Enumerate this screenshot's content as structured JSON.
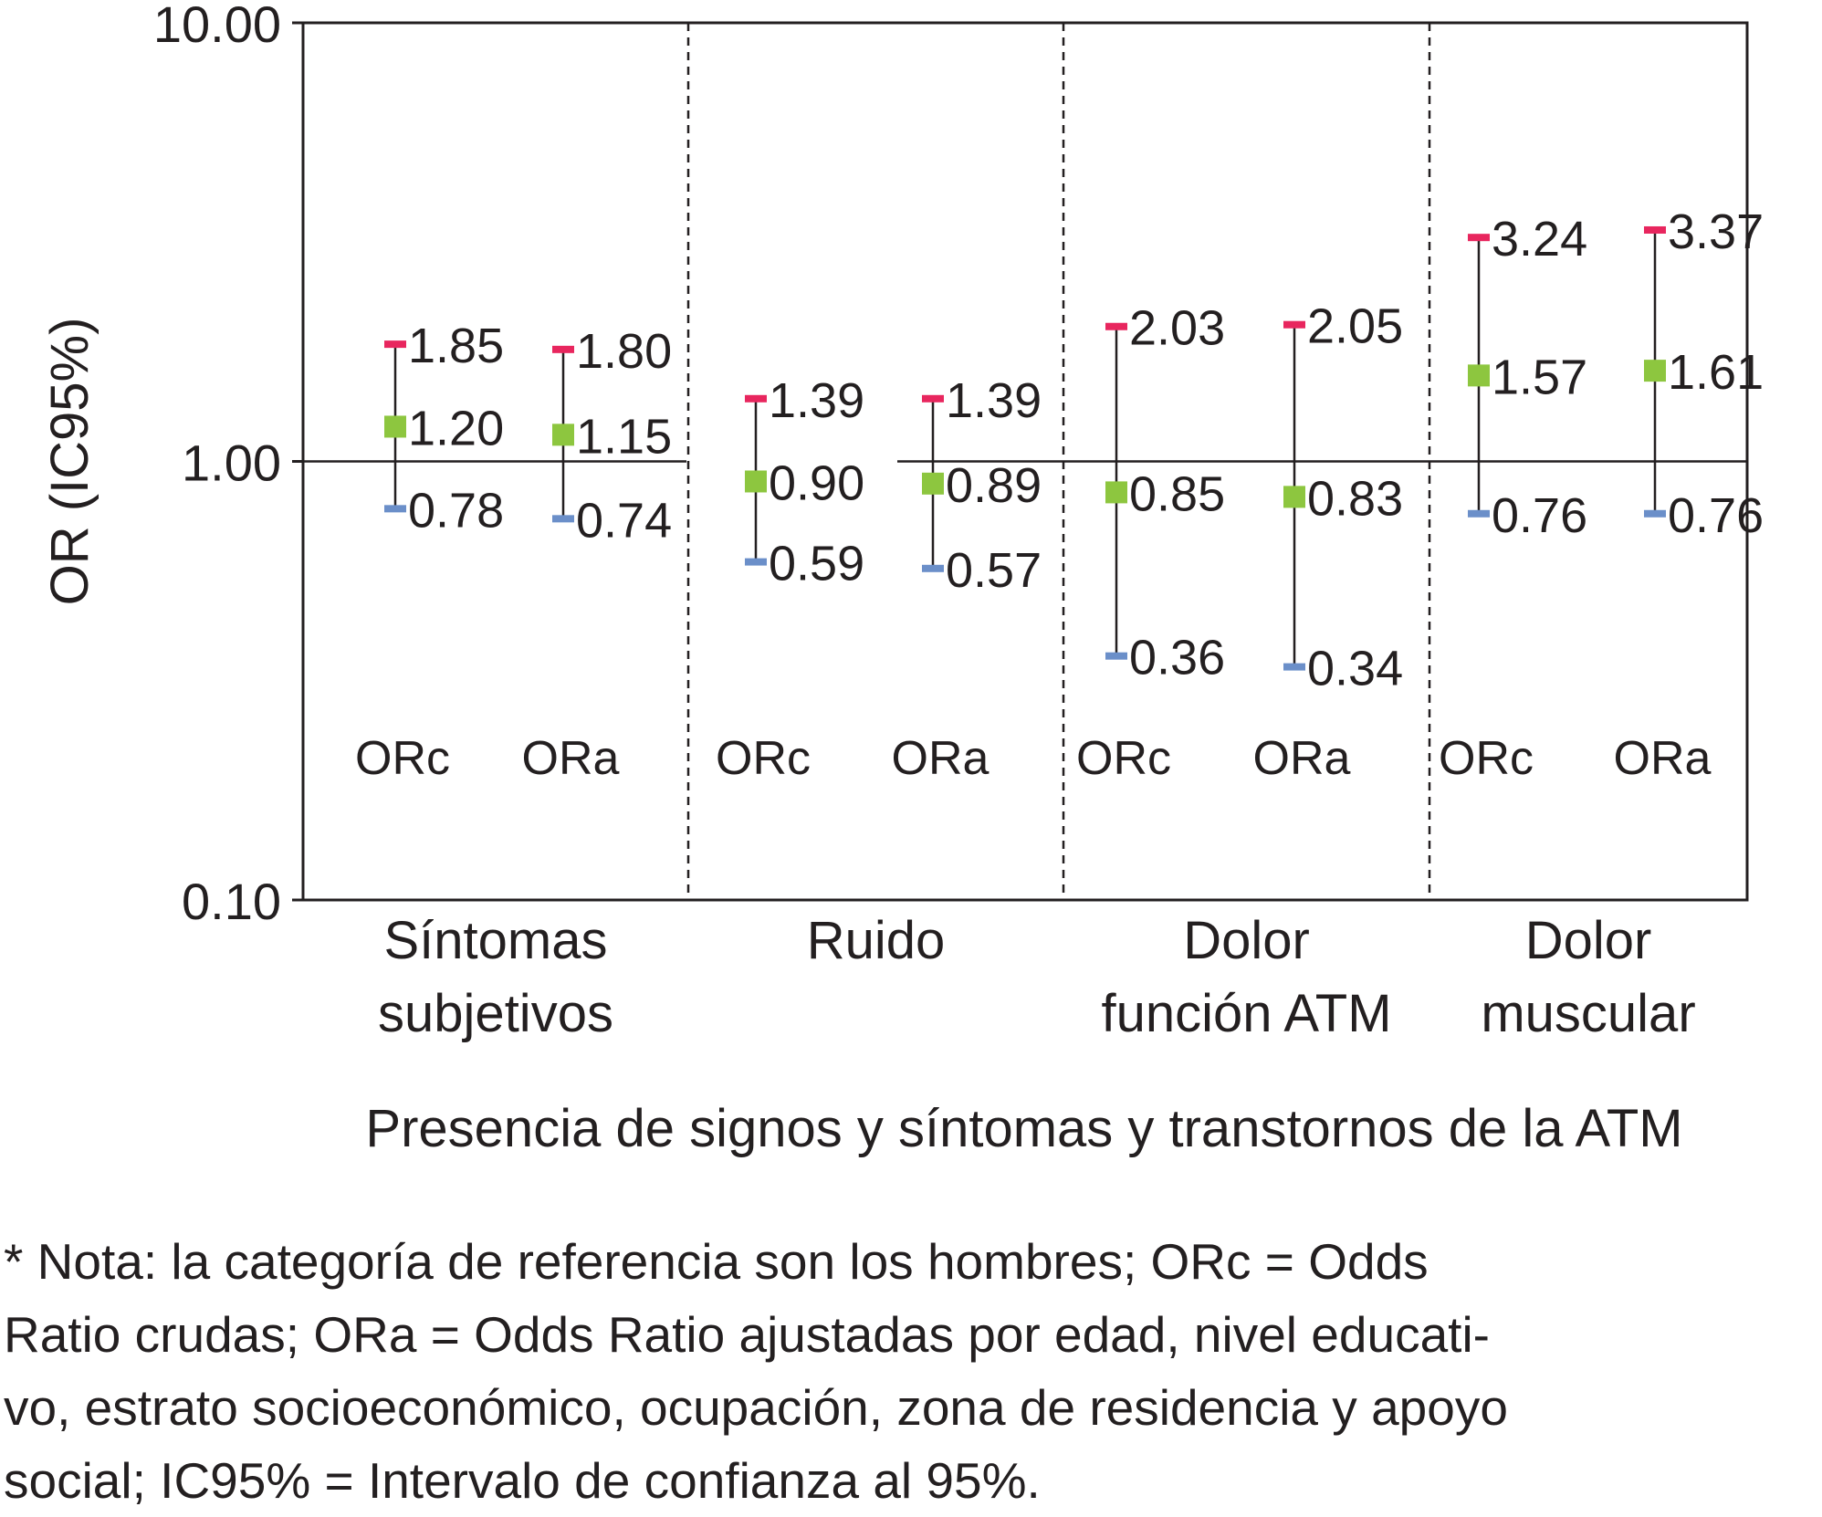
{
  "chart_data": {
    "type": "scatter",
    "ylabel": "OR (IC95%)",
    "xlabel": "Presencia de signos y síntomas y transtornos de la ATM",
    "yscale": "log",
    "ylim": [
      0.1,
      10
    ],
    "y_ticks": [
      "10.00",
      "1.00",
      "0.10"
    ],
    "reference_line": 1.0,
    "grid": false,
    "groups": [
      {
        "label_lines": [
          "Síntomas",
          "subjetivos"
        ],
        "estimates": [
          {
            "label": "ORc",
            "or": 1.2,
            "lower": 0.78,
            "upper": 1.85,
            "or_text": "1.20",
            "lower_text": "0.78",
            "upper_text": "1.85"
          },
          {
            "label": "ORa",
            "or": 1.15,
            "lower": 0.74,
            "upper": 1.8,
            "or_text": "1.15",
            "lower_text": "0.74",
            "upper_text": "1.80"
          }
        ]
      },
      {
        "label_lines": [
          "Ruido"
        ],
        "estimates": [
          {
            "label": "ORc",
            "or": 0.9,
            "lower": 0.59,
            "upper": 1.39,
            "or_text": "0.90",
            "lower_text": "0.59",
            "upper_text": "1.39"
          },
          {
            "label": "ORa",
            "or": 0.89,
            "lower": 0.57,
            "upper": 1.39,
            "or_text": "0.89",
            "lower_text": "0.57",
            "upper_text": "1.39"
          }
        ]
      },
      {
        "label_lines": [
          "Dolor",
          "función ATM"
        ],
        "estimates": [
          {
            "label": "ORc",
            "or": 0.85,
            "lower": 0.36,
            "upper": 2.03,
            "or_text": "0.85",
            "lower_text": "0.36",
            "upper_text": "2.03"
          },
          {
            "label": "ORa",
            "or": 0.83,
            "lower": 0.34,
            "upper": 2.05,
            "or_text": "0.83",
            "lower_text": "0.34",
            "upper_text": "2.05"
          }
        ]
      },
      {
        "label_lines": [
          "Dolor",
          "muscular"
        ],
        "estimates": [
          {
            "label": "ORc",
            "or": 1.57,
            "lower": 0.76,
            "upper": 3.24,
            "or_text": "1.57",
            "lower_text": "0.76",
            "upper_text": "3.24"
          },
          {
            "label": "ORa",
            "or": 1.61,
            "lower": 0.76,
            "upper": 3.37,
            "or_text": "1.61",
            "lower_text": "0.76",
            "upper_text": "3.37"
          }
        ]
      }
    ],
    "colors": {
      "point": "#8dc63f",
      "upper": "#e8265e",
      "lower": "#6b8fc9",
      "line": "#231f20"
    }
  },
  "note": {
    "lines": [
      "* Nota: la categoría de referencia son los hombres; ORc = Odds",
      "Ratio crudas; ORa = Odds Ratio ajustadas por edad, nivel educati-",
      "vo, estrato socioeconómico, ocupación, zona de residencia y apoyo",
      "social; IC95% = Intervalo de confianza al 95%."
    ]
  }
}
